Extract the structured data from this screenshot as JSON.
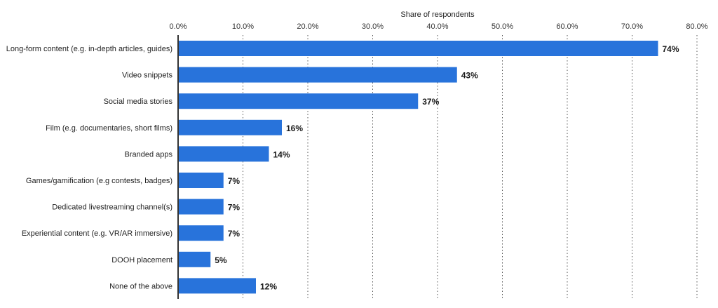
{
  "chart_data": {
    "type": "bar",
    "orientation": "horizontal",
    "xlabel": "Share of respondents",
    "xlim": [
      0,
      80
    ],
    "xticks": [
      "0.0%",
      "10.0%",
      "20.0%",
      "30.0%",
      "40.0%",
      "50.0%",
      "60.0%",
      "70.0%",
      "80.0%"
    ],
    "grid": true,
    "categories": [
      "Long-form content (e.g. in-depth articles, guides)",
      "Video snippets",
      "Social media stories",
      "Film (e.g. documentaries, short films)",
      "Branded apps",
      "Games/gamification (e.g contests, badges)",
      "Dedicated livestreaming channel(s)",
      "Experiential content (e.g. VR/AR immersive)",
      "DOOH placement",
      "None of the above"
    ],
    "values": [
      74,
      43,
      37,
      16,
      14,
      7,
      7,
      7,
      5,
      12
    ],
    "labels": [
      "74%",
      "43%",
      "37%",
      "16%",
      "14%",
      "7%",
      "7%",
      "7%",
      "5%",
      "12%"
    ],
    "bar_color": "#2873db"
  }
}
